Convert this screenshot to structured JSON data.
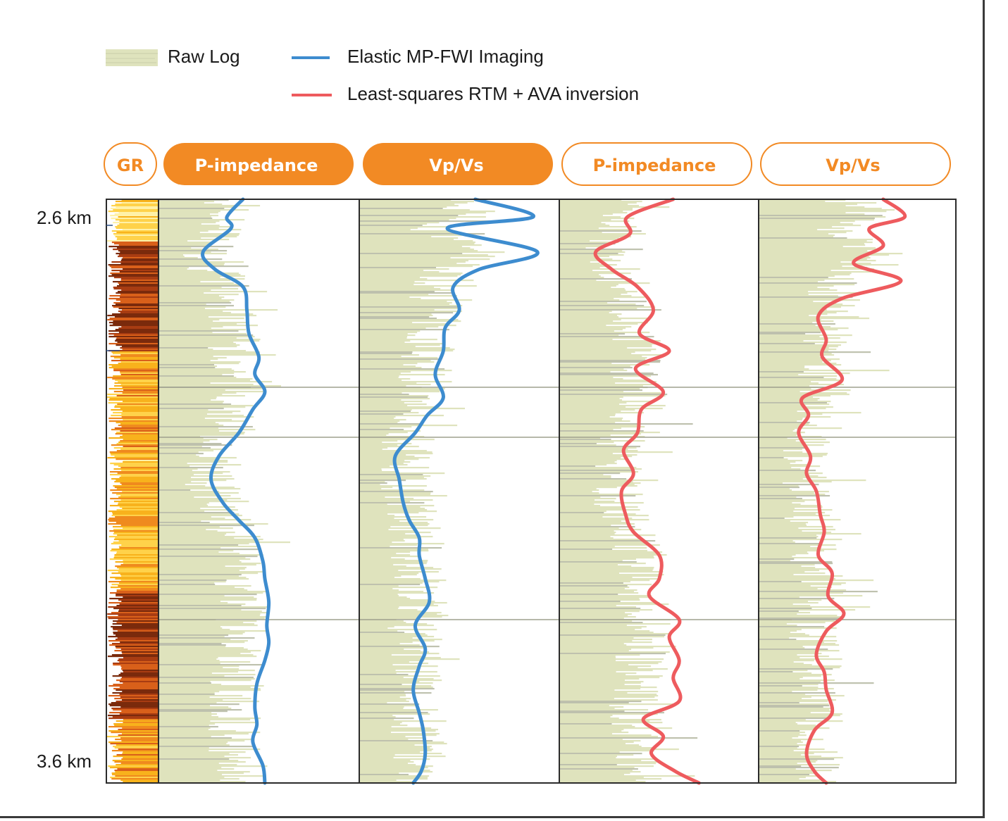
{
  "legend": {
    "raw_log": "Raw Log",
    "fwi": "Elastic MP-FWI Imaging",
    "lsrtm": "Least-squares RTM + AVA inversion"
  },
  "colors": {
    "raw_fill": "#dfe3bd",
    "raw_dark": "#a9ad94",
    "fwi": "#3d8ccf",
    "lsrtm": "#ee5b5e",
    "accent": "#f28a24",
    "frame": "#2b2b2b"
  },
  "depth_labels": {
    "top": "2.6 km",
    "bottom": "3.6 km"
  },
  "tracks": [
    {
      "id": "gr",
      "label": "GR",
      "filled": false
    },
    {
      "id": "fwi-pimp",
      "label": "P-impedance",
      "filled": true
    },
    {
      "id": "fwi-vpvs",
      "label": "Vp/Vs",
      "filled": true
    },
    {
      "id": "lsrtm-pimp",
      "label": "P-impedance",
      "filled": false
    },
    {
      "id": "lsrtm-vpvs",
      "label": "Vp/Vs",
      "filled": false
    }
  ],
  "chart_data": {
    "type": "line",
    "depth_range_km": [
      2.6,
      3.6
    ],
    "depth_unit": "km",
    "x_value_range": [
      0,
      1
    ],
    "series": [
      {
        "name": "Elastic MP-FWI Imaging",
        "track": "P-impedance",
        "depth": [
          2.6,
          2.63,
          2.65,
          2.69,
          2.72,
          2.75,
          2.79,
          2.83,
          2.87,
          2.9,
          2.93,
          2.96,
          3.0,
          3.04,
          3.08,
          3.12,
          3.15,
          3.18,
          3.22,
          3.25,
          3.29,
          3.33,
          3.36,
          3.39,
          3.43,
          3.47,
          3.5,
          3.53,
          3.57,
          3.6
        ],
        "value": [
          0.42,
          0.34,
          0.36,
          0.22,
          0.28,
          0.42,
          0.44,
          0.45,
          0.5,
          0.48,
          0.53,
          0.47,
          0.4,
          0.3,
          0.26,
          0.32,
          0.4,
          0.48,
          0.52,
          0.53,
          0.55,
          0.54,
          0.55,
          0.53,
          0.49,
          0.48,
          0.49,
          0.47,
          0.52,
          0.53
        ]
      },
      {
        "name": "Elastic MP-FWI Imaging",
        "track": "Vp/Vs",
        "depth": [
          2.6,
          2.63,
          2.65,
          2.69,
          2.72,
          2.75,
          2.79,
          2.82,
          2.86,
          2.9,
          2.94,
          2.97,
          3.0,
          3.04,
          3.08,
          3.12,
          3.15,
          3.18,
          3.21,
          3.25,
          3.29,
          3.33,
          3.37,
          3.4,
          3.44,
          3.48,
          3.51,
          3.55,
          3.58,
          3.6
        ],
        "value": [
          0.58,
          0.87,
          0.44,
          0.89,
          0.6,
          0.47,
          0.5,
          0.43,
          0.42,
          0.38,
          0.42,
          0.34,
          0.28,
          0.18,
          0.2,
          0.22,
          0.25,
          0.3,
          0.3,
          0.33,
          0.35,
          0.28,
          0.33,
          0.3,
          0.27,
          0.3,
          0.32,
          0.33,
          0.31,
          0.27
        ]
      },
      {
        "name": "Least-squares RTM + AVA inversion",
        "track": "P-impedance",
        "depth": [
          2.6,
          2.63,
          2.66,
          2.69,
          2.72,
          2.75,
          2.79,
          2.83,
          2.86,
          2.89,
          2.93,
          2.96,
          3.0,
          3.03,
          3.07,
          3.1,
          3.14,
          3.17,
          3.21,
          3.25,
          3.28,
          3.32,
          3.35,
          3.39,
          3.42,
          3.46,
          3.49,
          3.52,
          3.55,
          3.58,
          3.6
        ],
        "value": [
          0.57,
          0.34,
          0.35,
          0.18,
          0.26,
          0.39,
          0.47,
          0.4,
          0.55,
          0.38,
          0.52,
          0.41,
          0.39,
          0.32,
          0.37,
          0.31,
          0.33,
          0.37,
          0.5,
          0.5,
          0.45,
          0.6,
          0.55,
          0.6,
          0.57,
          0.6,
          0.42,
          0.52,
          0.46,
          0.58,
          0.7
        ]
      },
      {
        "name": "Least-squares RTM + AVA inversion",
        "track": "Vp/Vs",
        "depth": [
          2.6,
          2.63,
          2.65,
          2.68,
          2.71,
          2.74,
          2.77,
          2.8,
          2.84,
          2.87,
          2.91,
          2.94,
          2.97,
          3.0,
          3.04,
          3.07,
          3.1,
          3.14,
          3.17,
          3.21,
          3.24,
          3.28,
          3.31,
          3.34,
          3.38,
          3.41,
          3.44,
          3.48,
          3.51,
          3.55,
          3.58,
          3.6
        ],
        "value": [
          0.63,
          0.74,
          0.56,
          0.63,
          0.48,
          0.72,
          0.42,
          0.3,
          0.34,
          0.32,
          0.42,
          0.22,
          0.25,
          0.2,
          0.26,
          0.24,
          0.29,
          0.31,
          0.33,
          0.3,
          0.37,
          0.35,
          0.43,
          0.34,
          0.29,
          0.33,
          0.34,
          0.37,
          0.28,
          0.24,
          0.28,
          0.34
        ]
      }
    ]
  }
}
